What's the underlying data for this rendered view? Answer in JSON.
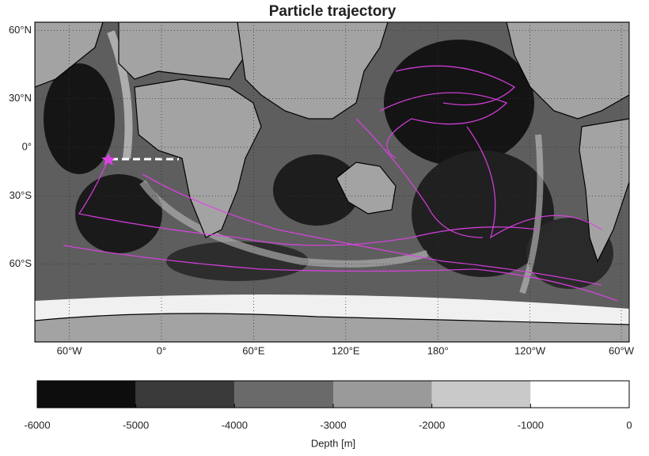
{
  "title": "Particle trajectory",
  "map": {
    "lat_ticks": [
      {
        "value": 60,
        "label": "60°N"
      },
      {
        "value": 30,
        "label": "30°N"
      },
      {
        "value": 0,
        "label": "0°"
      },
      {
        "value": -30,
        "label": "30°S"
      },
      {
        "value": -60,
        "label": "60°S"
      }
    ],
    "lon_ticks": [
      {
        "value": -60,
        "label": "60°W"
      },
      {
        "value": 0,
        "label": "0°"
      },
      {
        "value": 60,
        "label": "60°E"
      },
      {
        "value": 120,
        "label": "120°E"
      },
      {
        "value": 180,
        "label": "180°"
      },
      {
        "value": 240,
        "label": "120°W"
      },
      {
        "value": 300,
        "label": "60°W"
      }
    ]
  },
  "colorbar": {
    "label": "Depth [m]",
    "ticks": [
      -6000,
      -5000,
      -4000,
      -3000,
      -2000,
      -1000,
      0
    ],
    "colors": [
      "#0d0d0d",
      "#3a3a3a",
      "#6a6a6a",
      "#9a9a9a",
      "#c9c9c9",
      "#ffffff"
    ]
  }
}
